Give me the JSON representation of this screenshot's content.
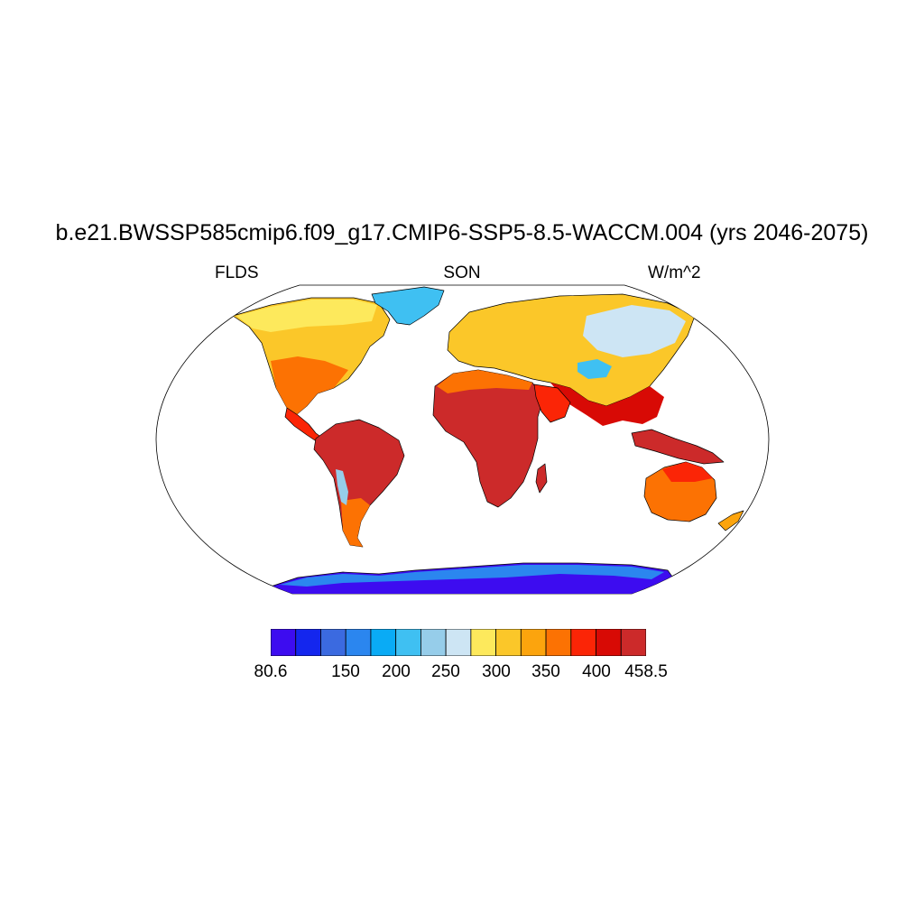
{
  "title": "b.e21.BWSSP585cmip6.f09_g17.CMIP6-SSP5-8.5-WACCM.004 (yrs 2046-2075)",
  "subtitles": {
    "left": "FLDS",
    "center": "SON",
    "right": "W/m^2"
  },
  "colorbar": {
    "colors": [
      "#3d0cf0",
      "#1426ee",
      "#3b6ae0",
      "#2b86ef",
      "#0aabf5",
      "#3fc0f2",
      "#96cdea",
      "#cde5f4",
      "#fde95c",
      "#fbc729",
      "#fca40d",
      "#fc7203",
      "#fb2506",
      "#d80a05",
      "#cc2a2a"
    ],
    "labels": [
      {
        "text": "80.6",
        "boundary": 0
      },
      {
        "text": "150",
        "boundary": 2
      },
      {
        "text": "200",
        "boundary": 3
      },
      {
        "text": "250",
        "boundary": 4
      },
      {
        "text": "300",
        "boundary": 5
      },
      {
        "text": "350",
        "boundary": 6
      },
      {
        "text": "400",
        "boundary": 7
      },
      {
        "text": "458.5",
        "boundary": 8
      }
    ]
  },
  "map": {
    "projection": "robinson",
    "land_fill_color_order": "cool polar to hot tropical"
  }
}
